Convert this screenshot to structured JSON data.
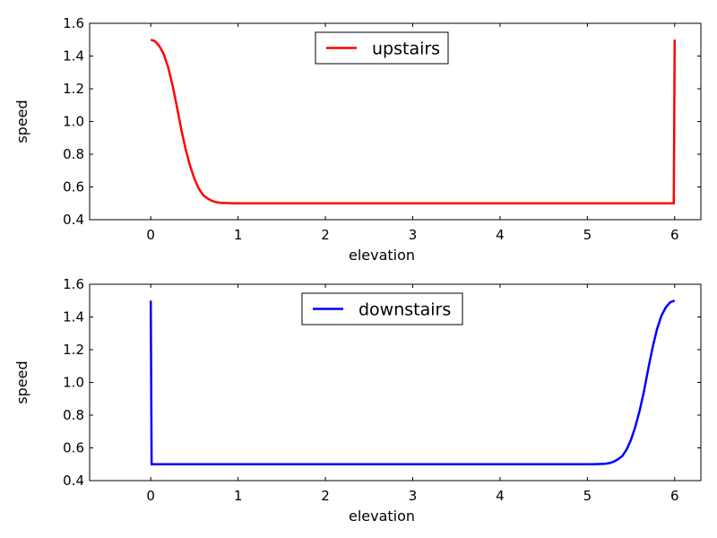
{
  "chart_data": [
    {
      "type": "line",
      "title": "",
      "xlabel": "elevation",
      "ylabel": "speed",
      "xlim": [
        -0.7,
        6.3
      ],
      "ylim": [
        0.4,
        1.6
      ],
      "xticks": [
        0,
        1,
        2,
        3,
        4,
        5,
        6
      ],
      "xtick_labels": [
        "0",
        "1",
        "2",
        "3",
        "4",
        "5",
        "6"
      ],
      "yticks": [
        0.4,
        0.6,
        0.8,
        1.0,
        1.2,
        1.4,
        1.6
      ],
      "ytick_labels": [
        "0.4",
        "0.6",
        "0.8",
        "1.0",
        "1.2",
        "1.4",
        "1.6"
      ],
      "grid": false,
      "legend": "top-center",
      "series": [
        {
          "name": "upstairs",
          "color": "#ff0000",
          "x": [
            0,
            0.05,
            0.1,
            0.15,
            0.2,
            0.25,
            0.3,
            0.35,
            0.4,
            0.45,
            0.5,
            0.55,
            0.6,
            0.65,
            0.7,
            0.75,
            0.8,
            0.9,
            1.0,
            1.2,
            1.5,
            2,
            3,
            4,
            5,
            5.5,
            5.99,
            5.995,
            6.0
          ],
          "y": [
            1.5,
            1.49,
            1.46,
            1.41,
            1.33,
            1.22,
            1.09,
            0.95,
            0.83,
            0.73,
            0.65,
            0.59,
            0.55,
            0.53,
            0.515,
            0.507,
            0.503,
            0.501,
            0.5,
            0.5,
            0.5,
            0.5,
            0.5,
            0.5,
            0.5,
            0.5,
            0.5,
            1.0,
            1.5
          ]
        }
      ]
    },
    {
      "type": "line",
      "title": "",
      "xlabel": "elevation",
      "ylabel": "speed",
      "xlim": [
        -0.7,
        6.3
      ],
      "ylim": [
        0.4,
        1.6
      ],
      "xticks": [
        0,
        1,
        2,
        3,
        4,
        5,
        6
      ],
      "xtick_labels": [
        "0",
        "1",
        "2",
        "3",
        "4",
        "5",
        "6"
      ],
      "yticks": [
        0.4,
        0.6,
        0.8,
        1.0,
        1.2,
        1.4,
        1.6
      ],
      "ytick_labels": [
        "0.4",
        "0.6",
        "0.8",
        "1.0",
        "1.2",
        "1.4",
        "1.6"
      ],
      "grid": false,
      "legend": "top-center",
      "series": [
        {
          "name": "downstairs",
          "color": "#0000ff",
          "x": [
            0,
            0.005,
            0.01,
            0.5,
            1,
            2,
            3,
            4,
            4.5,
            5.0,
            5.1,
            5.2,
            5.25,
            5.3,
            5.35,
            5.4,
            5.45,
            5.5,
            5.55,
            5.6,
            5.65,
            5.7,
            5.75,
            5.8,
            5.85,
            5.9,
            5.95,
            6.0
          ],
          "y": [
            1.5,
            1.0,
            0.5,
            0.5,
            0.5,
            0.5,
            0.5,
            0.5,
            0.5,
            0.5,
            0.501,
            0.503,
            0.507,
            0.515,
            0.53,
            0.55,
            0.59,
            0.65,
            0.73,
            0.83,
            0.95,
            1.09,
            1.22,
            1.33,
            1.41,
            1.46,
            1.49,
            1.5
          ]
        }
      ]
    }
  ]
}
